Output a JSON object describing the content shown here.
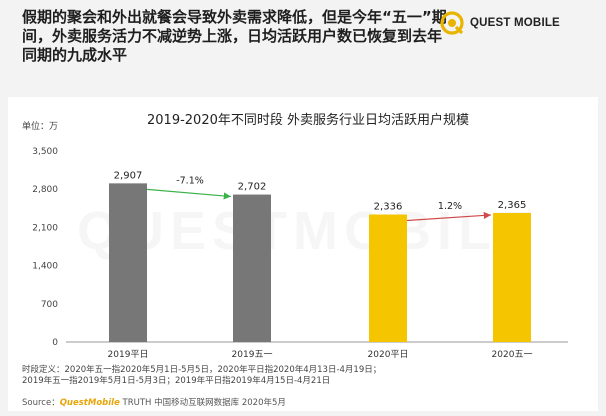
{
  "headline": "假期的聚会和外出就餐会导致外卖需求降低，但是今年“五一”期间，外卖服务活力不减逆势上涨，日均活跃用户数已恢复到去年同期的九成水平",
  "logo": {
    "text": "QUEST MOBILE",
    "icon": "quest-mobile-logo-icon",
    "accent": "#e8b400"
  },
  "watermark": "QUESTMOBILE",
  "chart_data": {
    "type": "bar",
    "title": "2019-2020年不同时段 外卖服务行业日均活跃用户规模",
    "unit": "单位：万",
    "categories": [
      "2019平日",
      "2019五一",
      "2020平日",
      "2020五一"
    ],
    "values": [
      2907,
      2702,
      2336,
      2365
    ],
    "value_labels": [
      "2,907",
      "2,702",
      "2,336",
      "2,365"
    ],
    "colors": [
      "#777777",
      "#777777",
      "#f5c500",
      "#f5c500"
    ],
    "yticks": [
      0,
      700,
      1400,
      2100,
      2800,
      3500
    ],
    "ytick_labels": [
      "0",
      "700",
      "1,400",
      "2,100",
      "2,800",
      "3,500"
    ],
    "ylim": [
      0,
      3500
    ],
    "grid": false,
    "annotations": [
      {
        "from": 0,
        "to": 1,
        "text": "-7.1%",
        "color": "#3bb24a"
      },
      {
        "from": 2,
        "to": 3,
        "text": "1.2%",
        "color": "#d14a4a"
      }
    ]
  },
  "notes": {
    "line1": "时段定义：2020年五一指2020年5月1日-5月5日，2020年平日指2020年4月13日-4月19日；",
    "line2": "2019年五一指2019年5月1日-5月3日；2019年平日指2019年4月15日-4月21日"
  },
  "source": {
    "prefix": "Source：",
    "brand": "QuestMobile",
    "rest": " TRUTH 中国移动互联网数据库 2020年5月"
  }
}
